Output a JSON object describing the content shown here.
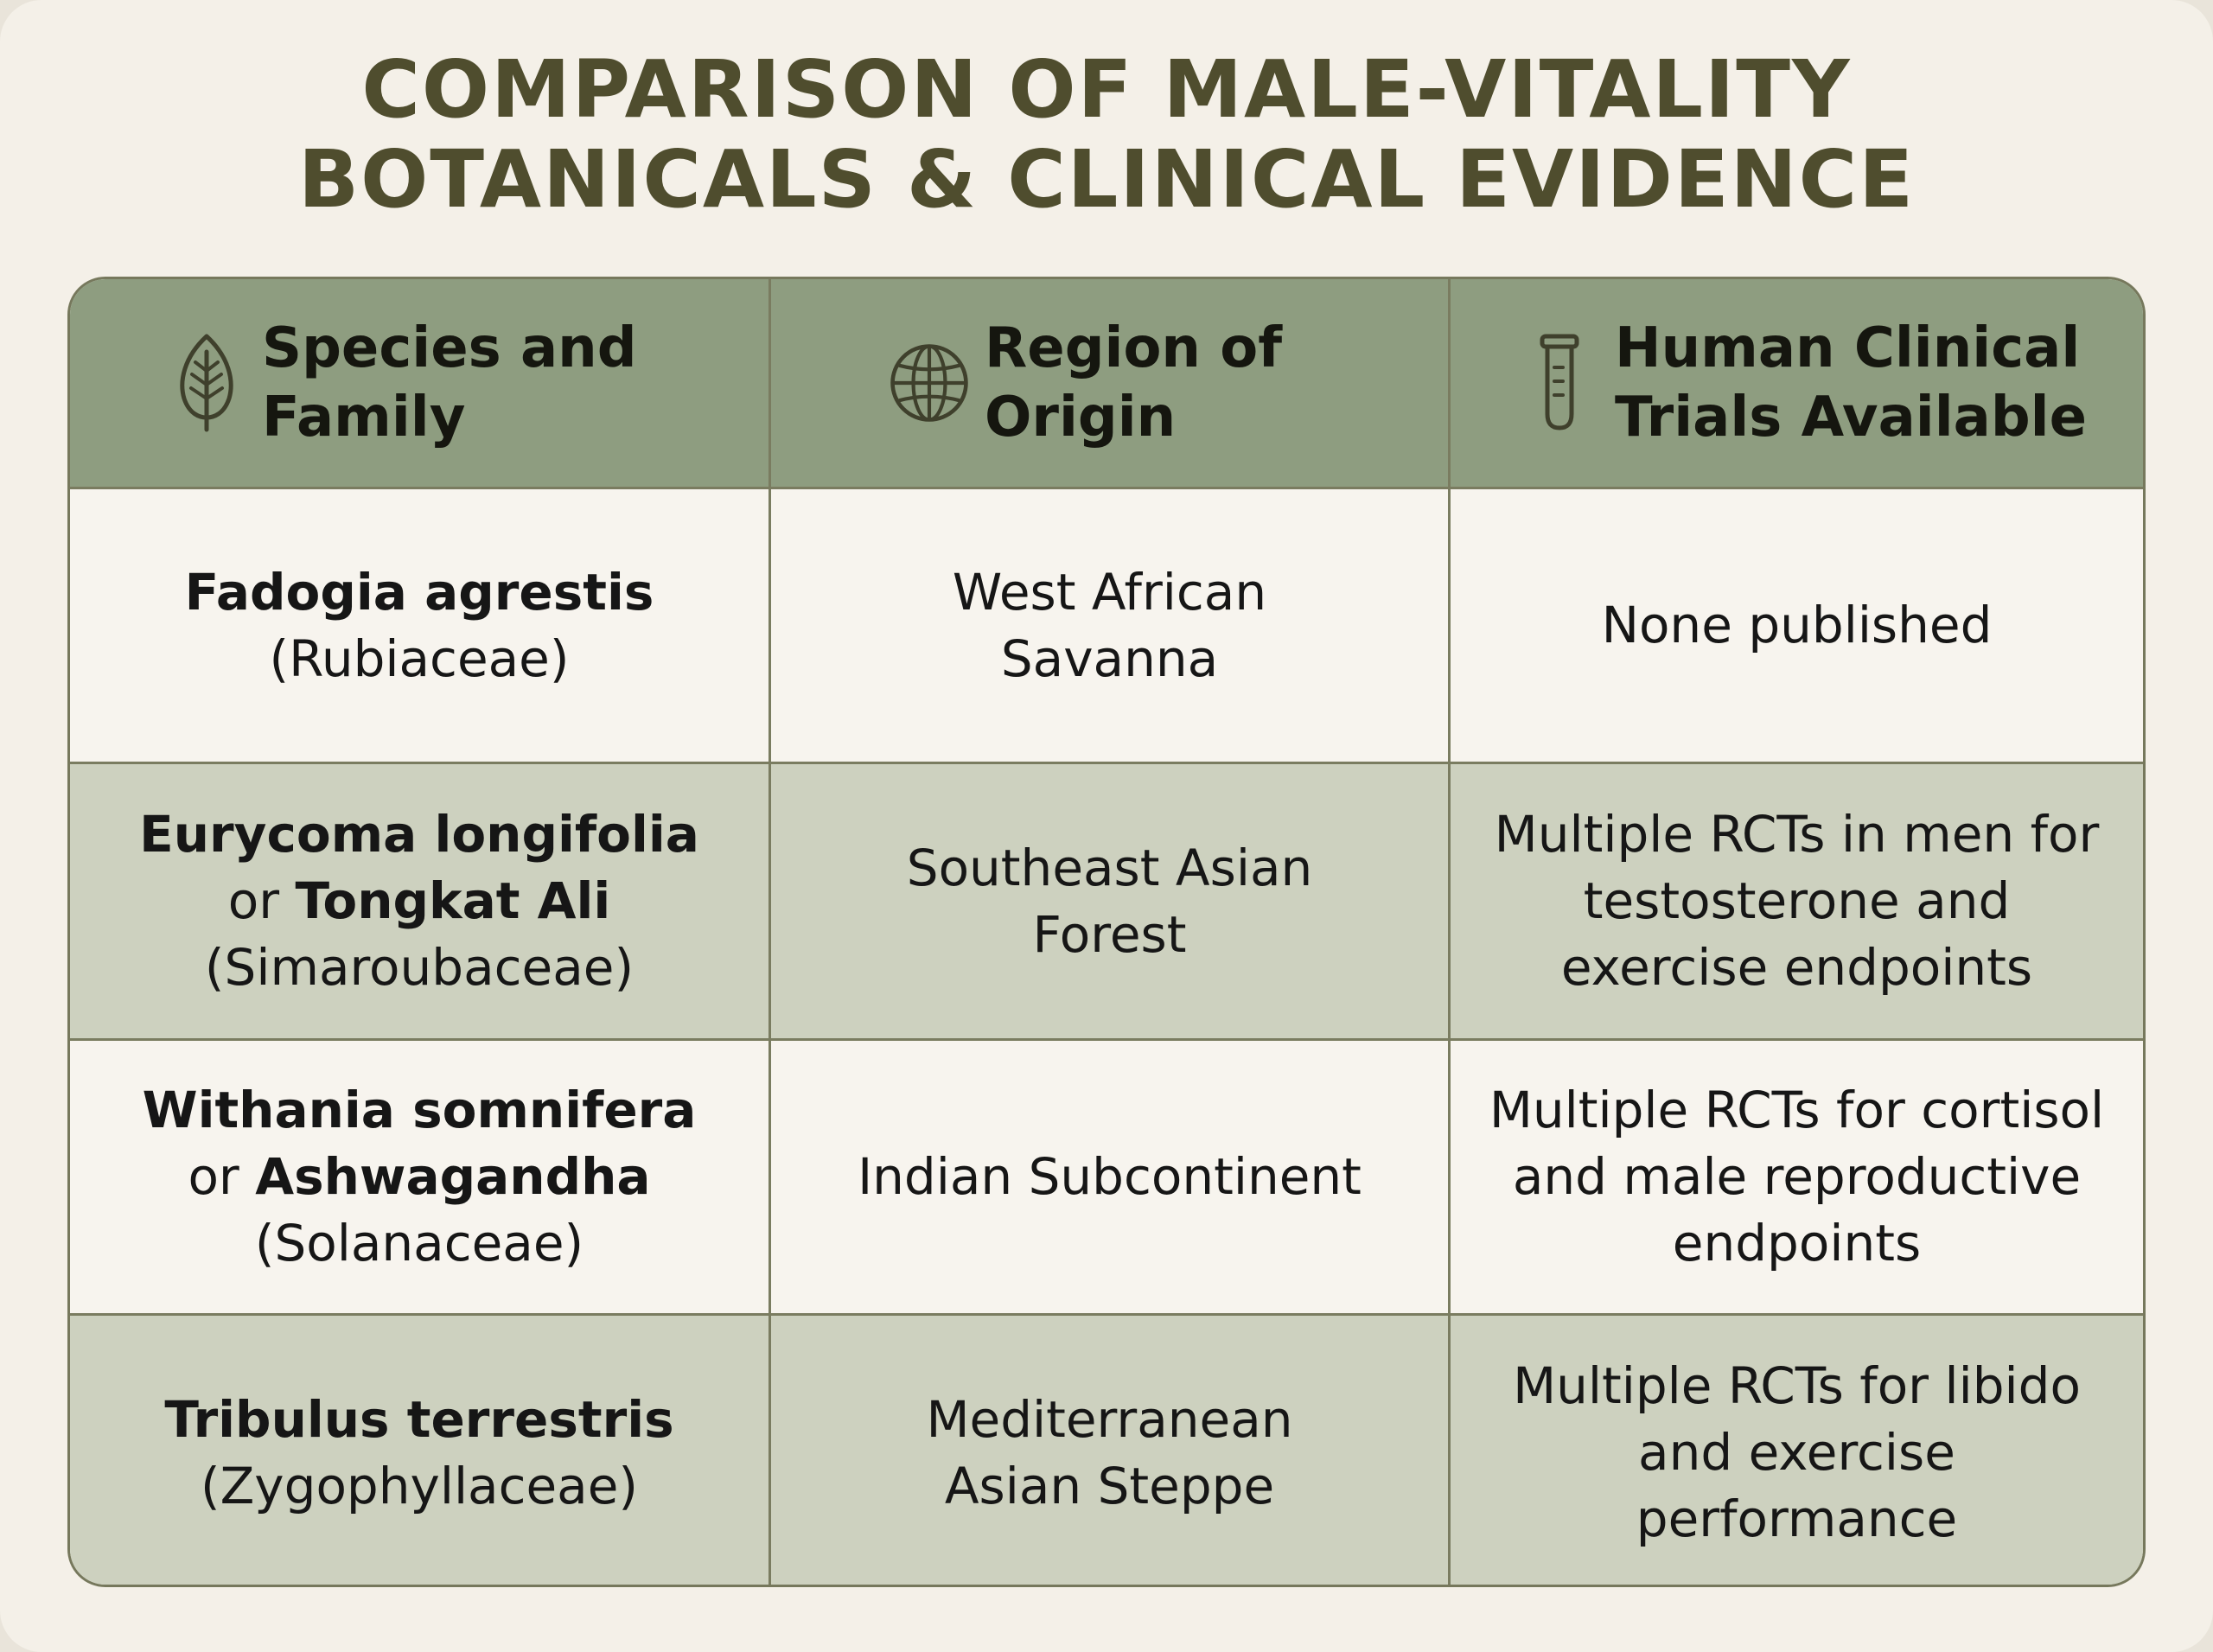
{
  "title": {
    "line1": "COMPARISON OF MALE-VITALITY",
    "line2": "BOTANICALS & CLINICAL EVIDENCE"
  },
  "table": {
    "headers": [
      {
        "icon": "leaf-icon",
        "line1": "Species and",
        "line2": "Family"
      },
      {
        "icon": "globe-icon",
        "line1": "Region of",
        "line2": "Origin"
      },
      {
        "icon": "test-tube-icon",
        "line1": "Human Clinical",
        "line2": "Trials Available"
      }
    ],
    "rows": [
      {
        "species": {
          "name": "Fadogia agrestis",
          "family": "(Rubiaceae)"
        },
        "region": [
          "West African",
          "Savanna"
        ],
        "trials": [
          "None published"
        ]
      },
      {
        "species": {
          "name": "Eurycoma longifolia",
          "connector": "or",
          "common_name": "Tongkat Ali",
          "family": "(Simaroubaceae)"
        },
        "region": [
          "Southeast Asian",
          "Forest"
        ],
        "trials": [
          "Multiple RCTs in men for",
          "testosterone and",
          "exercise endpoints"
        ]
      },
      {
        "species": {
          "name": "Withania somnifera",
          "connector": "or",
          "common_name": "Ashwagandha",
          "family": "(Solanaceae)"
        },
        "region": [
          "Indian Subcontinent"
        ],
        "trials": [
          "Multiple RCTs for cortisol",
          "and male reproductive",
          "endpoints"
        ]
      },
      {
        "species": {
          "name": "Tribulus terrestris",
          "family": "(Zygophyllaceae)"
        },
        "region": [
          "Mediterranean",
          "Asian Steppe"
        ],
        "trials": [
          "Multiple RCTs for libido",
          "and exercise",
          "performance"
        ]
      }
    ]
  },
  "colors": {
    "title": "#4f4d2e",
    "header_bg": "#8e9d80",
    "row_light": "#f7f4ee",
    "row_shaded": "#cdd1bf",
    "border": "#7a7c60",
    "icon": "#3f402c"
  }
}
